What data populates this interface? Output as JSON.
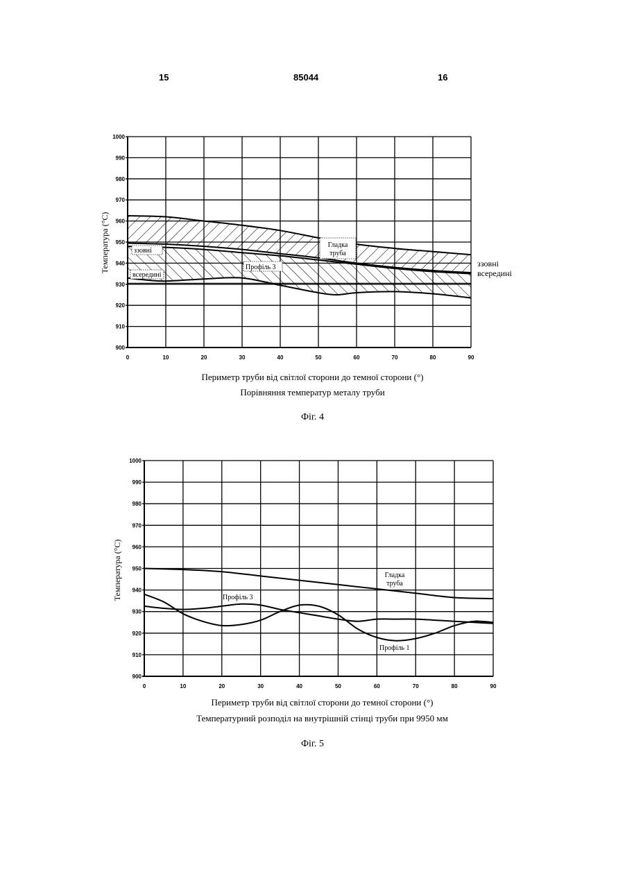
{
  "header": {
    "page_left": "15",
    "doc_number": "85044",
    "page_right": "16"
  },
  "chart_data": [
    {
      "type": "line",
      "ylabel": "Температура (°C)",
      "xlabel": "Периметр труби від світлої сторони до темної сторони (°)",
      "title": "Порівняння температур металу труби",
      "figure": "Фіг. 4",
      "xlim": [
        0,
        90
      ],
      "ylim": [
        900,
        1000
      ],
      "x_ticks": [
        "0",
        "10",
        "20",
        "30",
        "40",
        "50",
        "60",
        "70",
        "80",
        "90"
      ],
      "y_ticks": [
        "900",
        "910",
        "920",
        "930",
        "940",
        "950",
        "960",
        "970",
        "980",
        "990",
        "1000"
      ],
      "series": [
        {
          "name": "Гладка труба",
          "role": "outer-upper",
          "x": [
            0,
            10,
            20,
            30,
            40,
            50,
            60,
            70,
            80,
            90
          ],
          "y": [
            962.5,
            962,
            960,
            958,
            955.5,
            952,
            949,
            947,
            945.5,
            944
          ]
        },
        {
          "name": "Гладка труба",
          "role": "outer-lower",
          "x": [
            0,
            10,
            20,
            30,
            40,
            50,
            60,
            70,
            80,
            90
          ],
          "y": [
            949.5,
            949,
            948,
            946.5,
            944.5,
            942.5,
            940,
            938,
            936.5,
            935.5
          ]
        },
        {
          "name": "Профіль 3",
          "role": "inner-upper",
          "x": [
            0,
            10,
            20,
            30,
            40,
            50,
            60,
            70,
            80,
            90
          ],
          "y": [
            948,
            947.5,
            946.5,
            945,
            943.5,
            941.5,
            939.5,
            937.5,
            936,
            935
          ]
        },
        {
          "name": "Профіль 3",
          "role": "inner-lower",
          "x": [
            0,
            5,
            10,
            20,
            30,
            40,
            50,
            55,
            60,
            70,
            80,
            90
          ],
          "y": [
            933,
            932,
            931.5,
            932.5,
            933,
            929.5,
            926,
            925,
            926,
            926.5,
            925.5,
            923.5
          ]
        },
        {
          "name": "",
          "role": "flat-low",
          "x": [
            0,
            10,
            20,
            30,
            40,
            50,
            60,
            70,
            80,
            90
          ],
          "y": [
            930.5,
            930.5,
            930.5,
            930.5,
            930.5,
            930.5,
            930.5,
            930.5,
            930.5,
            930.5
          ]
        }
      ],
      "annotations": [
        "ззовні",
        "всередині",
        "Гладка",
        "труба",
        "Профіль 3",
        "ззовні",
        "всередині"
      ]
    },
    {
      "type": "line",
      "ylabel": "Температура (°C)",
      "xlabel": "Периметр труби від світлої сторони до темної сторони (°)",
      "title": "Температурний розподіл на внутрішній стінці труби при 9950 мм",
      "figure": "Фіг. 5",
      "xlim": [
        0,
        90
      ],
      "ylim": [
        900,
        1000
      ],
      "x_ticks": [
        "0",
        "10",
        "20",
        "30",
        "40",
        "50",
        "60",
        "70",
        "80",
        "90"
      ],
      "y_ticks": [
        "900",
        "910",
        "920",
        "930",
        "940",
        "950",
        "960",
        "970",
        "980",
        "990",
        "1000"
      ],
      "series": [
        {
          "name": "Гладка труба",
          "x": [
            0,
            10,
            20,
            30,
            40,
            50,
            60,
            70,
            80,
            90
          ],
          "y": [
            950,
            949.5,
            948.5,
            946.5,
            944.5,
            942.5,
            940.5,
            938.5,
            936.5,
            936
          ]
        },
        {
          "name": "Профіль 3",
          "x": [
            0,
            5,
            10,
            15,
            20,
            25,
            30,
            35,
            40,
            45,
            50,
            55,
            60,
            65,
            70,
            75,
            80,
            85,
            90
          ],
          "y": [
            932.5,
            931.5,
            931,
            931.5,
            932.5,
            933.5,
            933,
            931,
            929.5,
            928,
            926.5,
            925.5,
            926.5,
            926.5,
            926.5,
            926,
            925.5,
            925,
            924.5
          ]
        },
        {
          "name": "Профіль 1",
          "x": [
            0,
            5,
            10,
            15,
            20,
            25,
            30,
            35,
            40,
            45,
            50,
            55,
            60,
            65,
            70,
            75,
            80,
            85,
            90
          ],
          "y": [
            938,
            934.5,
            929,
            925.5,
            923.5,
            924,
            926,
            930,
            933,
            932.5,
            928.5,
            922,
            918,
            916.5,
            917.5,
            920,
            923.5,
            925.5,
            925
          ]
        }
      ],
      "annotations": [
        "Гладка",
        "труба",
        "Профіль 3",
        "Профіль 1"
      ]
    }
  ]
}
